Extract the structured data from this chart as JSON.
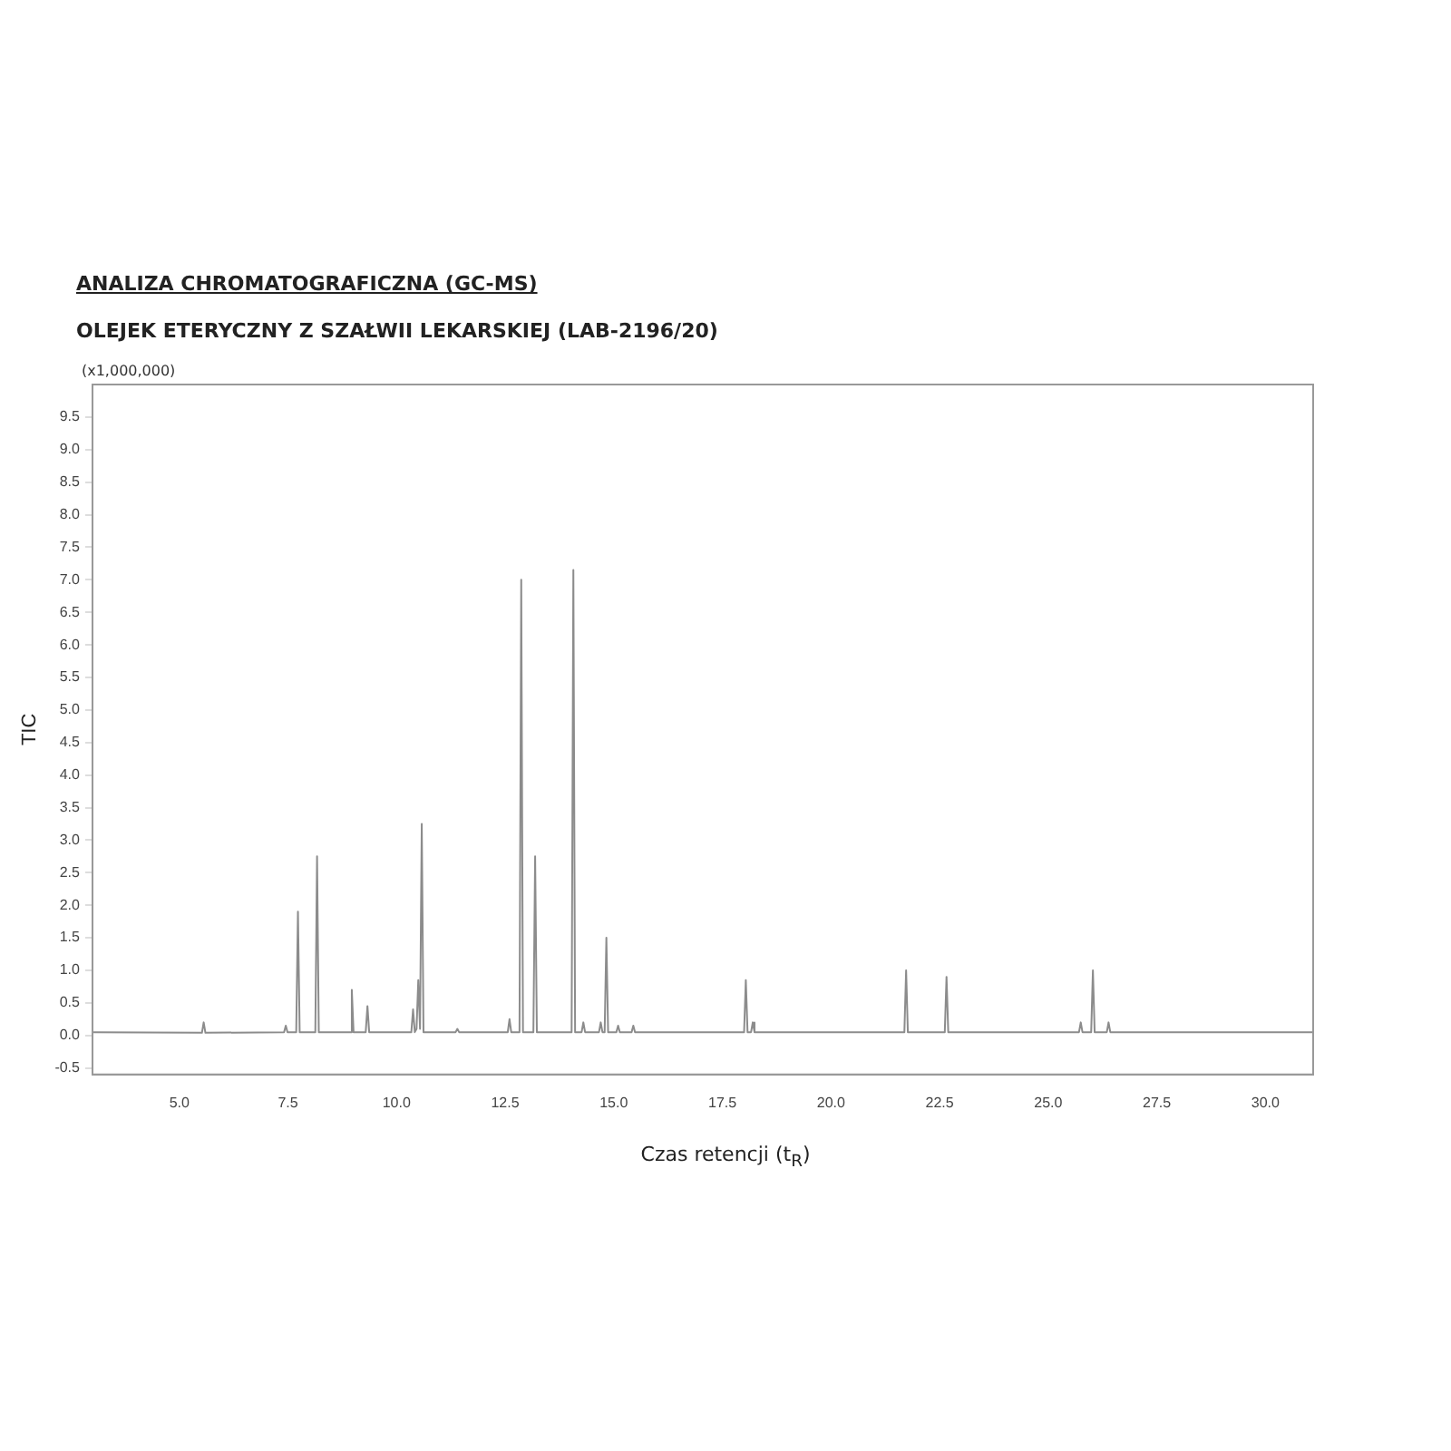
{
  "chart_data": {
    "type": "line",
    "title": "ANALIZA CHROMATOGRAFICZNA (GC-MS)",
    "subtitle": "OLEJEK ETERYCZNY Z SZAŁWII LEKARSKIEJ (LAB-2196/20)",
    "xlabel": "Czas retencji (t$_{R}$)",
    "ylabel": "TIC",
    "annotations": [
      "(x1,000,000)"
    ],
    "x": [
      3.0,
      5.52,
      5.56,
      5.6,
      7.41,
      7.45,
      7.49,
      7.69,
      7.73,
      7.77,
      8.13,
      8.17,
      8.21,
      8.93,
      8.97,
      9.01,
      9.29,
      9.33,
      9.37,
      10.34,
      10.38,
      10.42,
      10.46,
      10.5,
      10.54,
      10.58,
      10.62,
      11.36,
      11.4,
      11.44,
      12.56,
      12.6,
      12.64,
      12.83,
      12.87,
      12.91,
      13.15,
      13.19,
      13.23,
      14.03,
      14.07,
      14.11,
      14.26,
      14.3,
      14.34,
      14.66,
      14.7,
      14.74,
      14.79,
      14.83,
      14.87,
      15.06,
      15.1,
      15.14,
      15.41,
      15.45,
      15.49,
      18.0,
      18.04,
      18.08,
      18.16,
      18.2,
      18.24,
      21.69,
      21.73,
      21.77,
      22.62,
      22.66,
      22.7,
      25.71,
      25.75,
      25.79,
      25.99,
      26.03,
      26.07,
      26.35,
      26.39,
      26.43,
      31.1
    ],
    "series": [
      {
        "color": "#8c8c8c",
        "values": [
          0.05,
          0.04,
          0.2,
          0.04,
          0.05,
          0.15,
          0.05,
          0.05,
          1.9,
          0.05,
          0.05,
          2.75,
          0.05,
          0.05,
          0.7,
          0.05,
          0.05,
          0.45,
          0.05,
          0.05,
          0.4,
          0.05,
          0.1,
          0.85,
          0.1,
          3.25,
          0.05,
          0.05,
          0.1,
          0.05,
          0.05,
          0.25,
          0.05,
          0.05,
          7.0,
          0.05,
          0.05,
          2.75,
          0.05,
          0.05,
          7.15,
          0.05,
          0.05,
          0.2,
          0.05,
          0.05,
          0.2,
          0.05,
          0.05,
          1.5,
          0.05,
          0.05,
          0.15,
          0.05,
          0.05,
          0.15,
          0.05,
          0.05,
          0.85,
          0.05,
          0.05,
          0.2,
          0.05,
          0.05,
          1.0,
          0.05,
          0.05,
          0.9,
          0.05,
          0.05,
          0.2,
          0.05,
          0.05,
          1.0,
          0.05,
          0.05,
          0.2,
          0.05,
          0.05
        ]
      }
    ],
    "xlim": [
      3.0,
      31.1
    ],
    "ylim": [
      -0.6,
      10.0
    ],
    "xticks": [
      {
        "value": 5,
        "label": "5.0"
      },
      {
        "value": 7.5,
        "label": "7.5"
      },
      {
        "value": 10,
        "label": "10.0"
      },
      {
        "value": 12.5,
        "label": "12.5"
      },
      {
        "value": 15,
        "label": "15.0"
      },
      {
        "value": 17.5,
        "label": "17.5"
      },
      {
        "value": 20,
        "label": "20.0"
      },
      {
        "value": 22.5,
        "label": "22.5"
      },
      {
        "value": 25,
        "label": "25.0"
      },
      {
        "value": 27.5,
        "label": "27.5"
      },
      {
        "value": 30,
        "label": "30.0"
      }
    ],
    "yticks": [
      {
        "value": -0.5,
        "label": "-0.5"
      },
      {
        "value": 0,
        "label": "0.0"
      },
      {
        "value": 0.5,
        "label": "0.5"
      },
      {
        "value": 1,
        "label": "1.0"
      },
      {
        "value": 1.5,
        "label": "1.5"
      },
      {
        "value": 2,
        "label": "2.0"
      },
      {
        "value": 2.5,
        "label": "2.5"
      },
      {
        "value": 3,
        "label": "3.0"
      },
      {
        "value": 3.5,
        "label": "3.5"
      },
      {
        "value": 4,
        "label": "4.0"
      },
      {
        "value": 4.5,
        "label": "4.5"
      },
      {
        "value": 5,
        "label": "5.0"
      },
      {
        "value": 5.5,
        "label": "5.5"
      },
      {
        "value": 6,
        "label": "6.0"
      },
      {
        "value": 6.5,
        "label": "6.5"
      },
      {
        "value": 7,
        "label": "7.0"
      },
      {
        "value": 7.5,
        "label": "7.5"
      },
      {
        "value": 8,
        "label": "8.0"
      },
      {
        "value": 8.5,
        "label": "8.5"
      },
      {
        "value": 9,
        "label": "9.0"
      },
      {
        "value": 9.5,
        "label": "9.5"
      }
    ],
    "grid": false,
    "legend": false,
    "marker": "none",
    "line_style": "solid"
  }
}
